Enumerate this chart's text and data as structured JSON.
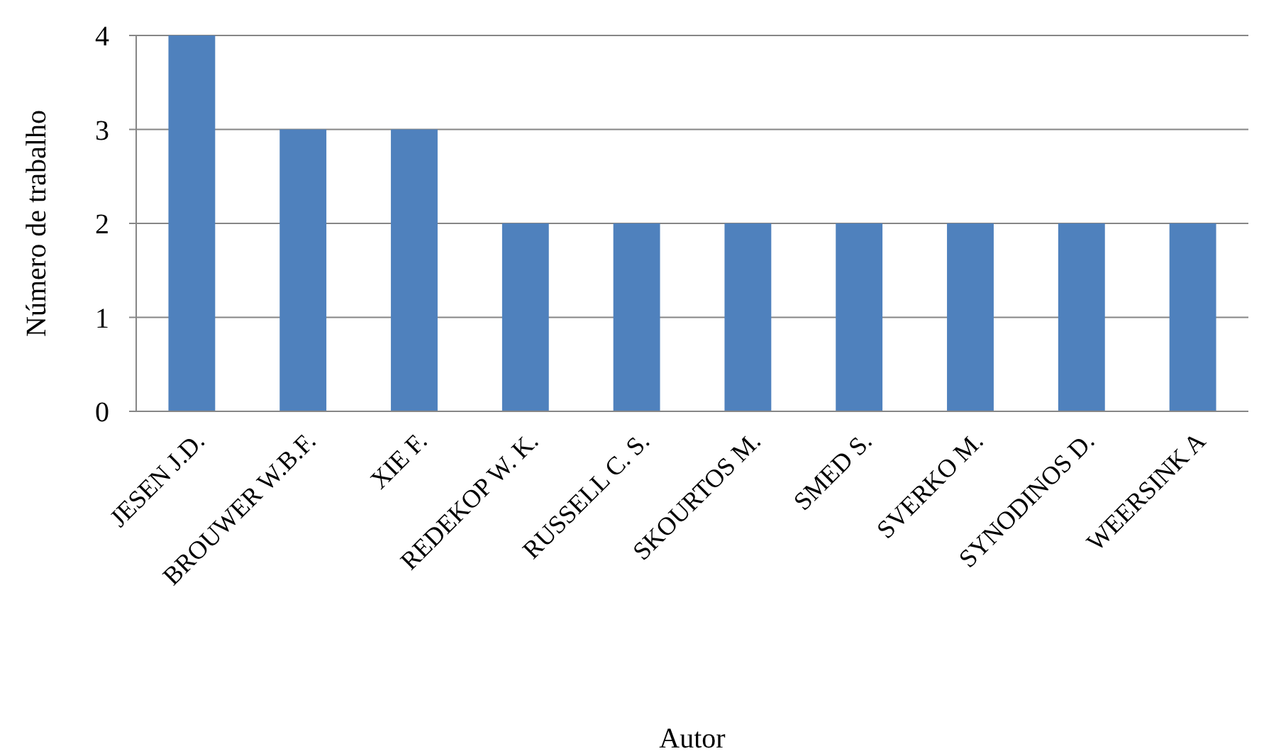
{
  "chart_data": {
    "type": "bar",
    "xlabel": "Autor",
    "ylabel": "Número de trabalho",
    "categories": [
      "JESEN J.D.",
      "BROUWER W.B.F.",
      "XIE F.",
      "REDEKOP W. K.",
      "RUSSELL C. S.",
      "SKOURTOS M.",
      "SMED S.",
      "SVERKO M.",
      "SYNODINOS D.",
      "WEERSINK A"
    ],
    "values": [
      4,
      3,
      3,
      2,
      2,
      2,
      2,
      2,
      2,
      2
    ],
    "color": "#4f81bd",
    "ylim": [
      0,
      4
    ],
    "yticks": [
      0,
      1,
      2,
      3,
      4
    ],
    "grid": "y"
  }
}
